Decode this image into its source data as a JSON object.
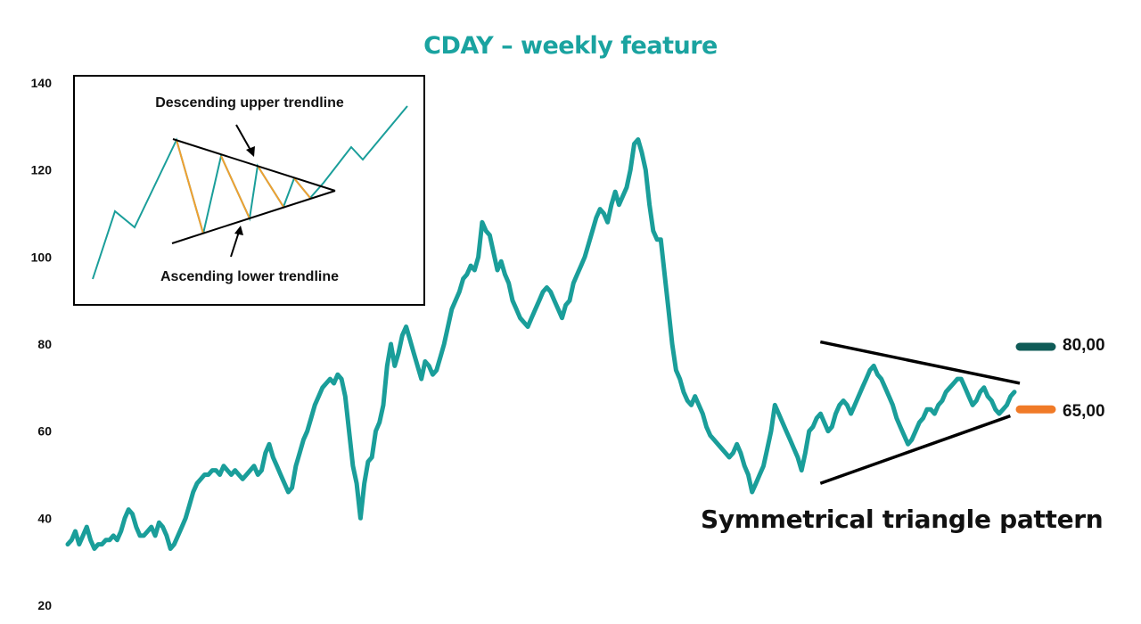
{
  "chart_data": {
    "type": "line",
    "title": "CDAY – weekly feature",
    "xlabel": "",
    "ylabel": "",
    "ylim": [
      20,
      140
    ],
    "yticks": [
      20,
      40,
      60,
      80,
      100,
      120,
      140
    ],
    "grid": false,
    "colors": {
      "price": "#1a9e9a",
      "title": "#1aa3a0",
      "level_80": "#0f5b57",
      "level_65": "#f07a27",
      "inset_down": "#f0a030"
    },
    "series": [
      {
        "values": [
          34,
          35,
          37,
          34,
          36,
          38,
          35,
          33,
          34,
          34,
          35,
          35,
          36,
          35,
          37,
          40,
          42,
          41,
          38,
          36,
          36,
          37,
          38,
          36,
          39,
          38,
          36,
          33,
          34,
          36,
          38,
          40,
          43,
          46,
          48,
          49,
          50,
          50,
          51,
          51,
          50,
          52,
          51,
          50,
          51,
          50,
          49,
          50,
          51,
          52,
          50,
          51,
          55,
          57,
          54,
          52,
          50,
          48,
          46,
          47,
          52,
          55,
          58,
          60,
          63,
          66,
          68,
          70,
          71,
          72,
          71,
          73,
          72,
          68,
          60,
          52,
          48,
          40,
          48,
          53,
          54,
          60,
          62,
          66,
          75,
          80,
          75,
          78,
          82,
          84,
          81,
          78,
          75,
          72,
          76,
          75,
          73,
          74,
          77,
          80,
          84,
          88,
          90,
          92,
          95,
          96,
          98,
          97,
          100,
          108,
          106,
          105,
          101,
          97,
          99,
          96,
          94,
          90,
          88,
          86,
          85,
          84,
          86,
          88,
          90,
          92,
          93,
          92,
          90,
          88,
          86,
          89,
          90,
          94,
          96,
          98,
          100,
          103,
          106,
          109,
          111,
          110,
          108,
          112,
          115,
          112,
          114,
          116,
          120,
          126,
          127,
          124,
          120,
          112,
          106,
          104,
          104,
          96,
          88,
          80,
          74,
          72,
          69,
          67,
          66,
          68,
          66,
          64,
          61,
          59,
          58,
          57,
          56,
          55,
          54,
          55,
          57,
          55,
          52,
          50,
          46,
          48,
          50,
          52,
          56,
          60,
          66,
          64,
          62,
          60,
          58,
          56,
          54,
          51,
          55,
          60,
          61,
          63,
          64,
          62,
          60,
          61,
          64,
          66,
          67,
          66,
          64,
          66,
          68,
          70,
          72,
          74,
          75,
          73,
          72,
          70,
          68,
          66,
          63,
          61,
          59,
          57,
          58,
          60,
          62,
          63,
          65,
          65,
          64,
          66,
          67,
          69,
          70,
          71,
          72,
          72,
          70,
          68,
          66,
          67,
          69,
          70,
          68,
          67,
          65,
          64,
          65,
          66,
          68,
          69
        ]
      }
    ],
    "trendlines": [
      {
        "name": "upper",
        "from": [
          0.795,
          80.5
        ],
        "to": [
          1.0,
          71.0
        ]
      },
      {
        "name": "lower",
        "from": [
          0.795,
          48.0
        ],
        "to": [
          0.99,
          63.5
        ]
      }
    ],
    "reference_levels": [
      {
        "value": 80,
        "label": "80,00",
        "color": "#0f5b57"
      },
      {
        "value": 65,
        "label": "65,00",
        "color": "#f07a27"
      }
    ],
    "annotation": "Symmetrical triangle pattern",
    "inset": {
      "upper_label": "Descending upper trendline",
      "lower_label": "Ascending lower trendline"
    }
  }
}
